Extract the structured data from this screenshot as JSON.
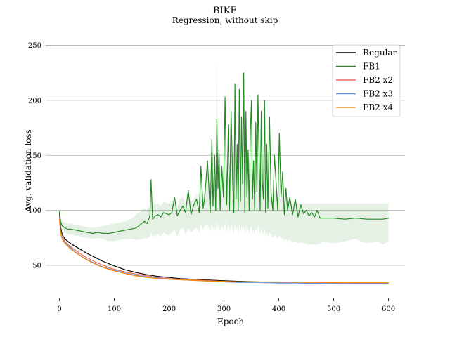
{
  "chart_data": {
    "type": "line",
    "title": "BIKE",
    "subtitle": "Regression, without skip",
    "xlabel": "Epoch",
    "ylabel": "Avg. validation loss",
    "xlim": [
      -25,
      630
    ],
    "ylim": [
      20,
      258
    ],
    "xticks": [
      0,
      100,
      200,
      300,
      400,
      500,
      600
    ],
    "yticks": [
      50,
      100,
      150,
      200,
      250
    ],
    "grid": "horizontal",
    "legend_position": "top-right",
    "series": [
      {
        "name": "Regular",
        "color": "#000000",
        "x": [
          0,
          2,
          5,
          10,
          20,
          30,
          40,
          50,
          60,
          70,
          80,
          90,
          100,
          120,
          140,
          160,
          180,
          200,
          220,
          240,
          260,
          280,
          300,
          330,
          360,
          400,
          450,
          500,
          550,
          600
        ],
        "y": [
          98,
          85,
          78,
          74,
          70,
          67,
          64,
          61,
          58.5,
          56,
          53.5,
          51.5,
          49.5,
          46,
          43.5,
          41.5,
          40,
          39,
          38,
          37.5,
          37,
          36.5,
          36,
          35.5,
          35,
          34.5,
          34,
          34,
          33.5,
          33.5
        ]
      },
      {
        "name": "FB1",
        "color": "#228b22",
        "band": true,
        "x": [
          0,
          2,
          5,
          10,
          15,
          20,
          30,
          40,
          50,
          60,
          70,
          80,
          90,
          100,
          110,
          120,
          130,
          140,
          150,
          155,
          160,
          165,
          167,
          170,
          175,
          180,
          185,
          190,
          195,
          200,
          205,
          210,
          215,
          220,
          225,
          230,
          235,
          240,
          245,
          250,
          255,
          258,
          262,
          265,
          270,
          275,
          278,
          280,
          283,
          285,
          287,
          289,
          291,
          293,
          296,
          299,
          302,
          305,
          308,
          310,
          313,
          316,
          318,
          320,
          322,
          324,
          326,
          328,
          330,
          332,
          334,
          336,
          338,
          340,
          342,
          344,
          346,
          348,
          350,
          352,
          354,
          356,
          358,
          360,
          362,
          364,
          366,
          368,
          370,
          372,
          374,
          376,
          378,
          380,
          383,
          386,
          389,
          392,
          395,
          398,
          401,
          404,
          407,
          410,
          413,
          416,
          420,
          425,
          430,
          435,
          440,
          445,
          450,
          455,
          460,
          465,
          470,
          475,
          480,
          500,
          520,
          540,
          560,
          580,
          590,
          600
        ],
        "y": [
          99,
          90,
          86,
          84,
          83,
          83,
          82,
          81,
          80,
          79,
          80,
          79,
          79,
          80,
          81,
          82,
          83,
          84,
          88,
          90,
          88,
          95,
          128,
          92,
          95,
          96,
          94,
          98,
          97,
          96,
          98,
          112,
          95,
          100,
          104,
          98,
          118,
          96,
          105,
          110,
          98,
          140,
          102,
          112,
          145,
          98,
          165,
          104,
          150,
          100,
          183,
          120,
          155,
          100,
          140,
          112,
          203,
          105,
          178,
          100,
          190,
          125,
          98,
          215,
          110,
          160,
          100,
          210,
          108,
          185,
          124,
          225,
          98,
          190,
          112,
          155,
          100,
          170,
          200,
          110,
          145,
          100,
          180,
          117,
          205,
          150,
          100,
          190,
          125,
          110,
          200,
          98,
          160,
          102,
          185,
          115,
          100,
          150,
          125,
          100,
          170,
          112,
          135,
          96,
          120,
          100,
          112,
          96,
          110,
          94,
          105,
          97,
          100,
          95,
          98,
          94,
          100,
          93,
          93,
          93,
          92,
          93,
          92,
          92,
          92,
          93
        ],
        "band_upper": [
          101,
          94,
          90,
          89,
          88,
          88,
          87,
          86,
          85,
          84,
          85,
          86,
          87,
          88,
          89,
          90,
          92,
          96,
          100,
          102,
          100,
          104,
          112,
          104,
          106,
          106,
          104,
          108,
          107,
          106,
          108,
          110,
          104,
          110,
          112,
          106,
          114,
          108,
          110,
          114,
          108,
          128,
          110,
          118,
          130,
          110,
          150,
          112,
          135,
          110,
          240,
          130,
          140,
          110,
          130,
          115,
          160,
          112,
          150,
          110,
          155,
          120,
          108,
          160,
          118,
          140,
          110,
          170,
          115,
          150,
          120,
          160,
          108,
          150,
          115,
          130,
          110,
          140,
          150,
          115,
          125,
          110,
          140,
          115,
          150,
          125,
          110,
          140,
          118,
          112,
          140,
          108,
          125,
          110,
          130,
          115,
          108,
          120,
          115,
          108,
          125,
          112,
          118,
          106,
          112,
          108,
          110,
          106,
          108,
          106,
          107,
          106,
          106,
          106,
          106,
          106,
          106,
          106,
          106,
          106,
          106,
          106,
          106,
          106,
          106,
          106
        ],
        "band_lower": [
          97,
          86,
          82,
          79,
          78,
          78,
          77,
          76,
          75,
          74,
          75,
          74,
          72,
          72,
          73,
          74,
          74,
          73,
          74,
          75,
          74,
          76,
          80,
          76,
          77,
          78,
          76,
          80,
          78,
          77,
          80,
          82,
          76,
          82,
          84,
          78,
          84,
          80,
          82,
          84,
          80,
          88,
          82,
          86,
          88,
          80,
          90,
          82,
          88,
          80,
          90,
          84,
          88,
          80,
          86,
          82,
          90,
          80,
          88,
          80,
          88,
          82,
          78,
          90,
          80,
          86,
          78,
          88,
          80,
          86,
          82,
          88,
          78,
          86,
          80,
          84,
          78,
          84,
          86,
          80,
          82,
          78,
          84,
          80,
          86,
          82,
          78,
          84,
          80,
          78,
          84,
          76,
          80,
          76,
          80,
          78,
          75,
          78,
          76,
          74,
          78,
          74,
          75,
          72,
          74,
          72,
          73,
          71,
          72,
          70,
          71,
          70,
          70,
          69,
          69,
          69,
          69,
          70,
          72,
          70,
          72,
          74,
          70,
          72,
          69,
          72
        ]
      },
      {
        "name": "FB2 x2",
        "color": "#f26b50",
        "x": [
          0,
          2,
          5,
          10,
          20,
          30,
          40,
          50,
          60,
          70,
          80,
          90,
          100,
          120,
          140,
          160,
          180,
          200,
          220,
          240,
          260,
          280,
          300,
          330,
          360,
          400,
          450,
          500,
          550,
          600
        ],
        "y": [
          94,
          82,
          76,
          72,
          67,
          63.5,
          60,
          57,
          54.5,
          52,
          50,
          48,
          46.5,
          44,
          42,
          40.5,
          39,
          38,
          37.5,
          37,
          36.5,
          36,
          35.5,
          35,
          35,
          34.5,
          34.5,
          34,
          34,
          34
        ]
      },
      {
        "name": "FB2 x3",
        "color": "#6495ed",
        "x": [
          0,
          2,
          5,
          10,
          20,
          30,
          40,
          50,
          60,
          70,
          80,
          90,
          100,
          120,
          140,
          160,
          180,
          200,
          220,
          240,
          260,
          280,
          300,
          330,
          360,
          400,
          450,
          500,
          550,
          600
        ],
        "y": [
          93,
          81,
          75,
          71,
          66,
          62,
          58.5,
          55.5,
          53,
          50.5,
          48.5,
          47,
          45.5,
          43,
          41,
          39.5,
          38.5,
          37.5,
          37,
          36.5,
          36,
          35.5,
          35,
          34.5,
          34.5,
          34,
          34,
          33.5,
          33.5,
          33.5
        ]
      },
      {
        "name": "FB2 x4",
        "color": "#ff8c00",
        "x": [
          0,
          2,
          5,
          10,
          20,
          30,
          40,
          50,
          60,
          70,
          80,
          90,
          100,
          120,
          140,
          160,
          180,
          200,
          220,
          240,
          260,
          280,
          300,
          330,
          360,
          400,
          450,
          500,
          550,
          600
        ],
        "y": [
          92,
          80,
          74,
          70,
          65,
          61.5,
          58,
          55,
          52.5,
          50,
          48,
          46.5,
          45,
          42.5,
          40.5,
          39,
          38,
          37.5,
          37,
          36.5,
          36,
          35.5,
          35.5,
          35,
          35,
          35,
          34.5,
          34.5,
          34.5,
          34.5
        ]
      }
    ]
  }
}
